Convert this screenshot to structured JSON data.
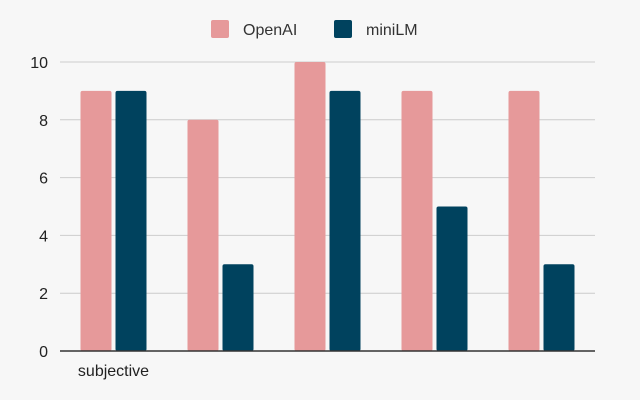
{
  "chart_data": {
    "type": "bar",
    "categories": [
      "subjective",
      "",
      "",
      "",
      ""
    ],
    "series": [
      {
        "name": "OpenAI",
        "values": [
          9,
          8,
          10,
          9,
          9
        ],
        "color": "#e6999a"
      },
      {
        "name": "miniLM",
        "values": [
          9,
          3,
          9,
          5,
          3
        ],
        "color": "#00425e"
      }
    ],
    "title": "",
    "xlabel": "",
    "ylabel": "",
    "ylim": [
      0,
      10
    ],
    "yticks": [
      0,
      2,
      4,
      6,
      8,
      10
    ],
    "grid": true,
    "legend_position": "top-center"
  }
}
